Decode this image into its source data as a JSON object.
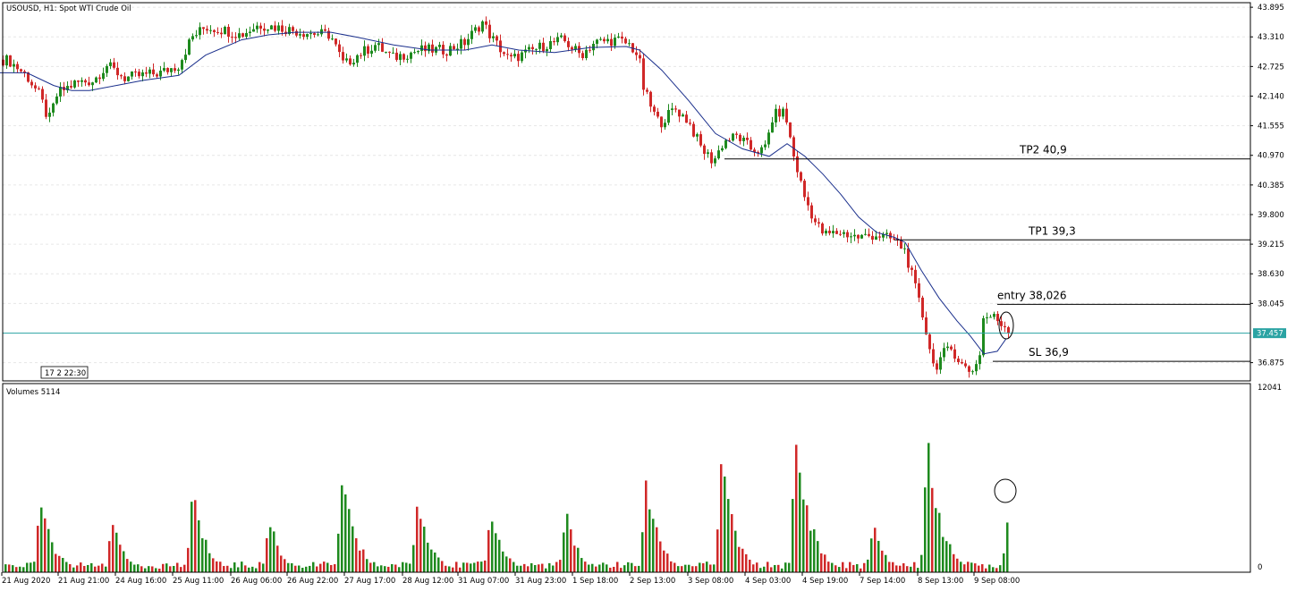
{
  "header": {
    "title": "USOUSD, H1:  Spot WTI Crude Oil",
    "volumes_title": "Volumes 5114",
    "period_marker": "17 2 22:30"
  },
  "chart_data": [
    {
      "type": "candlestick",
      "title": "USOUSD, H1:  Spot WTI Crude Oil",
      "x_labels": [
        "21 Aug 2020",
        "21 Aug 21:00",
        "24 Aug 16:00",
        "25 Aug 11:00",
        "26 Aug 06:00",
        "26 Aug 22:00",
        "27 Aug 17:00",
        "28 Aug 12:00",
        "31 Aug 07:00",
        "31 Aug 23:00",
        "1 Sep 18:00",
        "2 Sep 13:00",
        "3 Sep 08:00",
        "4 Sep 03:00",
        "4 Sep 19:00",
        "7 Sep 14:00",
        "8 Sep 13:00",
        "9 Sep 08:00"
      ],
      "y_ticks": [
        "43.895",
        "43.310",
        "42.725",
        "42.140",
        "41.555",
        "40.970",
        "40.385",
        "39.800",
        "39.215",
        "38.630",
        "38.045",
        "37.457",
        "36.875"
      ],
      "ylim": [
        36.55,
        43.95
      ],
      "current_price": 37.457,
      "price_path": [
        [
          0,
          42.86
        ],
        [
          10,
          42.85
        ],
        [
          30,
          42.55
        ],
        [
          45,
          42.15
        ],
        [
          55,
          41.65
        ],
        [
          65,
          42.2
        ],
        [
          85,
          42.4
        ],
        [
          105,
          42.45
        ],
        [
          120,
          42.75
        ],
        [
          140,
          42.5
        ],
        [
          160,
          42.55
        ],
        [
          180,
          42.6
        ],
        [
          200,
          42.75
        ],
        [
          215,
          43.3
        ],
        [
          230,
          43.5
        ],
        [
          250,
          43.45
        ],
        [
          270,
          43.35
        ],
        [
          290,
          43.55
        ],
        [
          310,
          43.5
        ],
        [
          340,
          43.4
        ],
        [
          370,
          43.35
        ],
        [
          385,
          42.75
        ],
        [
          400,
          42.95
        ],
        [
          420,
          43.15
        ],
        [
          440,
          42.9
        ],
        [
          470,
          43.05
        ],
        [
          500,
          43.05
        ],
        [
          520,
          43.2
        ],
        [
          540,
          43.6
        ],
        [
          550,
          43.3
        ],
        [
          570,
          42.85
        ],
        [
          590,
          43.0
        ],
        [
          610,
          43.15
        ],
        [
          630,
          43.25
        ],
        [
          650,
          42.95
        ],
        [
          665,
          43.2
        ],
        [
          690,
          43.25
        ],
        [
          705,
          43.15
        ],
        [
          715,
          42.9
        ],
        [
          720,
          42.3
        ],
        [
          730,
          41.85
        ],
        [
          738,
          41.6
        ],
        [
          755,
          41.9
        ],
        [
          770,
          41.65
        ],
        [
          785,
          41.1
        ],
        [
          798,
          40.85
        ],
        [
          810,
          41.25
        ],
        [
          825,
          41.35
        ],
        [
          840,
          41.1
        ],
        [
          855,
          41.05
        ],
        [
          865,
          41.75
        ],
        [
          875,
          41.85
        ],
        [
          880,
          41.65
        ],
        [
          888,
          40.95
        ],
        [
          900,
          40.15
        ],
        [
          912,
          39.65
        ],
        [
          922,
          39.4
        ],
        [
          940,
          39.45
        ],
        [
          960,
          39.35
        ],
        [
          980,
          39.4
        ],
        [
          1000,
          39.3
        ],
        [
          1012,
          39.1
        ],
        [
          1020,
          38.6
        ],
        [
          1030,
          37.95
        ],
        [
          1038,
          37.35
        ],
        [
          1045,
          36.75
        ],
        [
          1055,
          37.05
        ],
        [
          1065,
          37.15
        ],
        [
          1075,
          36.85
        ],
        [
          1085,
          36.7
        ],
        [
          1095,
          36.9
        ],
        [
          1100,
          37.75
        ],
        [
          1110,
          37.8
        ],
        [
          1120,
          37.65
        ],
        [
          1128,
          37.55
        ]
      ],
      "moving_average": [
        [
          0,
          42.6
        ],
        [
          30,
          42.6
        ],
        [
          60,
          42.35
        ],
        [
          80,
          42.25
        ],
        [
          100,
          42.25
        ],
        [
          130,
          42.35
        ],
        [
          160,
          42.45
        ],
        [
          200,
          42.55
        ],
        [
          230,
          42.95
        ],
        [
          270,
          43.25
        ],
        [
          300,
          43.35
        ],
        [
          330,
          43.4
        ],
        [
          370,
          43.4
        ],
        [
          400,
          43.3
        ],
        [
          440,
          43.15
        ],
        [
          480,
          43.05
        ],
        [
          520,
          43.05
        ],
        [
          550,
          43.15
        ],
        [
          580,
          43.05
        ],
        [
          620,
          43.0
        ],
        [
          660,
          43.1
        ],
        [
          700,
          43.12
        ],
        [
          715,
          43.05
        ],
        [
          740,
          42.65
        ],
        [
          770,
          42.05
        ],
        [
          800,
          41.4
        ],
        [
          830,
          41.1
        ],
        [
          860,
          40.95
        ],
        [
          880,
          41.2
        ],
        [
          900,
          40.95
        ],
        [
          920,
          40.6
        ],
        [
          940,
          40.2
        ],
        [
          960,
          39.75
        ],
        [
          980,
          39.45
        ],
        [
          1000,
          39.35
        ],
        [
          1012,
          39.25
        ],
        [
          1030,
          38.7
        ],
        [
          1050,
          38.15
        ],
        [
          1070,
          37.7
        ],
        [
          1085,
          37.4
        ],
        [
          1100,
          37.05
        ],
        [
          1115,
          37.1
        ],
        [
          1125,
          37.35
        ]
      ],
      "levels": [
        {
          "label": "TP2 40,9",
          "value": 40.9
        },
        {
          "label": "TP1 39,3",
          "value": 39.3
        },
        {
          "label": "entry 38,026",
          "value": 38.026
        },
        {
          "label": "SL 36,9",
          "value": 36.9
        }
      ]
    },
    {
      "type": "bar",
      "title": "Volumes 5114",
      "y_ticks": [
        "12041",
        "0"
      ],
      "ylim": [
        0,
        12041
      ],
      "volumes": [
        [
          5,
          400
        ],
        [
          45,
          5700
        ],
        [
          125,
          3900
        ],
        [
          215,
          6300
        ],
        [
          300,
          4100
        ],
        [
          382,
          8400
        ],
        [
          466,
          5800
        ],
        [
          548,
          4500
        ],
        [
          632,
          4500
        ],
        [
          722,
          7100
        ],
        [
          806,
          9100
        ],
        [
          890,
          12000
        ],
        [
          975,
          3600
        ],
        [
          1037,
          11000
        ],
        [
          1127,
          5600
        ]
      ]
    }
  ],
  "colors": {
    "up": "#1e8a1e",
    "down": "#d02828",
    "moving_average": "#1a2f8c",
    "current_price": "#2aa3a3",
    "level_line": "#000000",
    "frame": "#000000"
  }
}
